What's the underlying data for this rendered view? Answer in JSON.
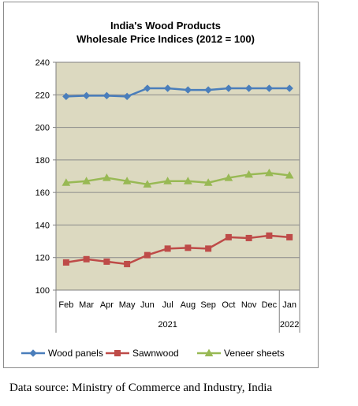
{
  "chart_data": {
    "type": "line",
    "title_line1": "India's Wood Products",
    "title_line2": "Wholesale Price Indices (2012 = 100)",
    "categories": [
      "Feb",
      "Mar",
      "Apr",
      "May",
      "Jun",
      "Jul",
      "Aug",
      "Sep",
      "Oct",
      "Nov",
      "Dec",
      "Jan"
    ],
    "year_groups": [
      {
        "label": "2021",
        "start": 0,
        "end": 10
      },
      {
        "label": "2022",
        "start": 11,
        "end": 11
      }
    ],
    "ylim": [
      100,
      240
    ],
    "yticks": [
      100,
      120,
      140,
      160,
      180,
      200,
      220,
      240
    ],
    "plot_background": "#dcd9c0",
    "grid": "horizontal",
    "legend_position": "bottom",
    "series": [
      {
        "name": "Wood panels",
        "color": "#4a7ebb",
        "marker": "diamond",
        "values": [
          219,
          219.5,
          219.5,
          219,
          224,
          224,
          223,
          223,
          224,
          224,
          224,
          224
        ]
      },
      {
        "name": "Sawnwood",
        "color": "#be4b48",
        "marker": "square",
        "values": [
          117,
          119,
          117.5,
          116,
          121.5,
          125.5,
          126,
          125.5,
          132.5,
          132,
          133.5,
          132.5
        ]
      },
      {
        "name": "Veneer sheets",
        "color": "#98b954",
        "marker": "triangle",
        "values": [
          166,
          167,
          169,
          167,
          165,
          167,
          167,
          166,
          169,
          171,
          172,
          170.5
        ]
      }
    ]
  },
  "source_text": "Data source: Ministry of Commerce and Industry, India"
}
